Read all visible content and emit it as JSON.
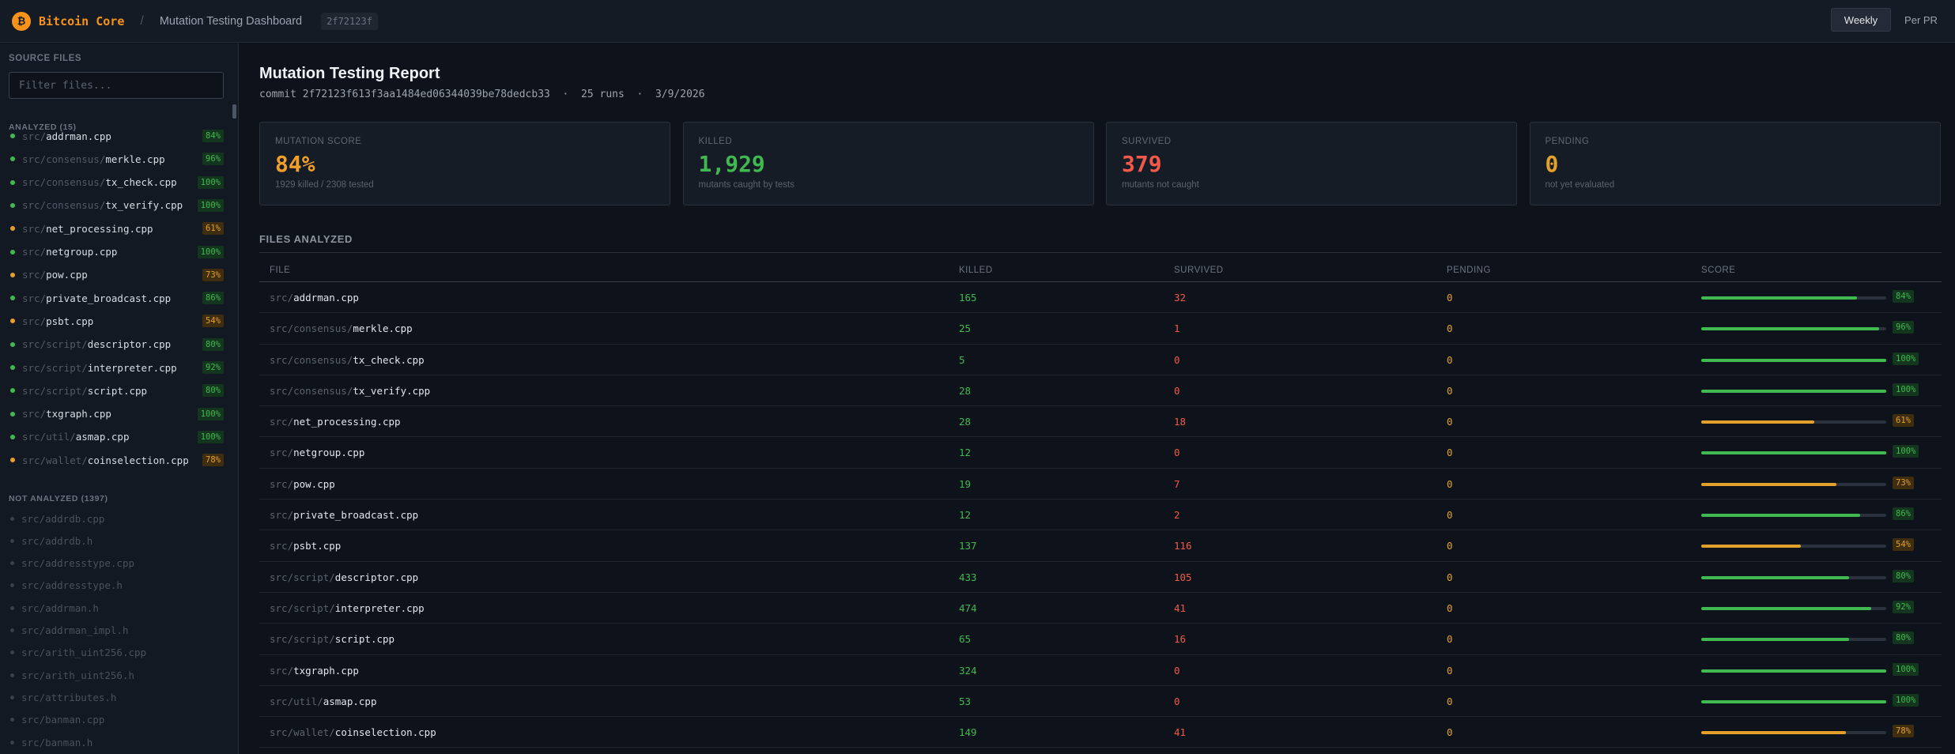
{
  "header": {
    "logo_glyph": "₿",
    "brand": "Bitcoin Core",
    "separator": "/",
    "title": "Mutation Testing Dashboard",
    "commit_short": "2f72123f",
    "toggle": {
      "weekly": "Weekly",
      "per_pr": "Per PR",
      "selected": "Weekly"
    }
  },
  "sidebar": {
    "heading": "SOURCE FILES",
    "filter_placeholder": "Filter files...",
    "analyzed_heading": "ANALYZED (15)",
    "analyzed": [
      {
        "dir": "src/",
        "name": "addrman.cpp",
        "pct": "84%",
        "status": "green"
      },
      {
        "dir": "src/consensus/",
        "name": "merkle.cpp",
        "pct": "96%",
        "status": "green"
      },
      {
        "dir": "src/consensus/",
        "name": "tx_check.cpp",
        "pct": "100%",
        "status": "green"
      },
      {
        "dir": "src/consensus/",
        "name": "tx_verify.cpp",
        "pct": "100%",
        "status": "green"
      },
      {
        "dir": "src/",
        "name": "net_processing.cpp",
        "pct": "61%",
        "status": "orange"
      },
      {
        "dir": "src/",
        "name": "netgroup.cpp",
        "pct": "100%",
        "status": "green"
      },
      {
        "dir": "src/",
        "name": "pow.cpp",
        "pct": "73%",
        "status": "orange"
      },
      {
        "dir": "src/",
        "name": "private_broadcast.cpp",
        "pct": "86%",
        "status": "green"
      },
      {
        "dir": "src/",
        "name": "psbt.cpp",
        "pct": "54%",
        "status": "orange"
      },
      {
        "dir": "src/script/",
        "name": "descriptor.cpp",
        "pct": "80%",
        "status": "green"
      },
      {
        "dir": "src/script/",
        "name": "interpreter.cpp",
        "pct": "92%",
        "status": "green"
      },
      {
        "dir": "src/script/",
        "name": "script.cpp",
        "pct": "80%",
        "status": "green"
      },
      {
        "dir": "src/",
        "name": "txgraph.cpp",
        "pct": "100%",
        "status": "green"
      },
      {
        "dir": "src/util/",
        "name": "asmap.cpp",
        "pct": "100%",
        "status": "green"
      },
      {
        "dir": "src/wallet/",
        "name": "coinselection.cpp",
        "pct": "78%",
        "status": "orange"
      }
    ],
    "not_analyzed_heading": "NOT ANALYZED (1397)",
    "not_analyzed": [
      {
        "dir": "src/",
        "name": "addrdb.cpp"
      },
      {
        "dir": "src/",
        "name": "addrdb.h"
      },
      {
        "dir": "src/",
        "name": "addresstype.cpp"
      },
      {
        "dir": "src/",
        "name": "addresstype.h"
      },
      {
        "dir": "src/",
        "name": "addrman.h"
      },
      {
        "dir": "src/",
        "name": "addrman_impl.h"
      },
      {
        "dir": "src/",
        "name": "arith_uint256.cpp"
      },
      {
        "dir": "src/",
        "name": "arith_uint256.h"
      },
      {
        "dir": "src/",
        "name": "attributes.h"
      },
      {
        "dir": "src/",
        "name": "banman.cpp"
      },
      {
        "dir": "src/",
        "name": "banman.h"
      }
    ]
  },
  "report": {
    "title": "Mutation Testing Report",
    "commit_label": "commit",
    "commit_hash": "2f72123f613f3aa1484ed06344039be78dedcb33",
    "runs": "25 runs",
    "date": "3/9/2026",
    "dot": "·"
  },
  "cards": [
    {
      "label": "MUTATION SCORE",
      "value": "84%",
      "sub": "1929 killed / 2308 tested",
      "color": "#f0a02a"
    },
    {
      "label": "KILLED",
      "value": "1,929",
      "sub": "mutants caught by tests",
      "color": "#3fb950"
    },
    {
      "label": "SURVIVED",
      "value": "379",
      "sub": "mutants not caught",
      "color": "#f15a4a"
    },
    {
      "label": "PENDING",
      "value": "0",
      "sub": "not yet evaluated",
      "color": "#e3a129"
    }
  ],
  "table": {
    "heading": "FILES ANALYZED",
    "columns": [
      "FILE",
      "KILLED",
      "SURVIVED",
      "PENDING",
      "SCORE"
    ],
    "rows": [
      {
        "dir": "src/",
        "name": "addrman.cpp",
        "killed": "165",
        "survived": "32",
        "pending": "0",
        "score": "84%",
        "score_value": 84,
        "status": "green"
      },
      {
        "dir": "src/consensus/",
        "name": "merkle.cpp",
        "killed": "25",
        "survived": "1",
        "pending": "0",
        "score": "96%",
        "score_value": 96,
        "status": "green"
      },
      {
        "dir": "src/consensus/",
        "name": "tx_check.cpp",
        "killed": "5",
        "survived": "0",
        "pending": "0",
        "score": "100%",
        "score_value": 100,
        "status": "green"
      },
      {
        "dir": "src/consensus/",
        "name": "tx_verify.cpp",
        "killed": "28",
        "survived": "0",
        "pending": "0",
        "score": "100%",
        "score_value": 100,
        "status": "green"
      },
      {
        "dir": "src/",
        "name": "net_processing.cpp",
        "killed": "28",
        "survived": "18",
        "pending": "0",
        "score": "61%",
        "score_value": 61,
        "status": "orange"
      },
      {
        "dir": "src/",
        "name": "netgroup.cpp",
        "killed": "12",
        "survived": "0",
        "pending": "0",
        "score": "100%",
        "score_value": 100,
        "status": "green"
      },
      {
        "dir": "src/",
        "name": "pow.cpp",
        "killed": "19",
        "survived": "7",
        "pending": "0",
        "score": "73%",
        "score_value": 73,
        "status": "orange"
      },
      {
        "dir": "src/",
        "name": "private_broadcast.cpp",
        "killed": "12",
        "survived": "2",
        "pending": "0",
        "score": "86%",
        "score_value": 86,
        "status": "green"
      },
      {
        "dir": "src/",
        "name": "psbt.cpp",
        "killed": "137",
        "survived": "116",
        "pending": "0",
        "score": "54%",
        "score_value": 54,
        "status": "orange"
      },
      {
        "dir": "src/script/",
        "name": "descriptor.cpp",
        "killed": "433",
        "survived": "105",
        "pending": "0",
        "score": "80%",
        "score_value": 80,
        "status": "green"
      },
      {
        "dir": "src/script/",
        "name": "interpreter.cpp",
        "killed": "474",
        "survived": "41",
        "pending": "0",
        "score": "92%",
        "score_value": 92,
        "status": "green"
      },
      {
        "dir": "src/script/",
        "name": "script.cpp",
        "killed": "65",
        "survived": "16",
        "pending": "0",
        "score": "80%",
        "score_value": 80,
        "status": "green"
      },
      {
        "dir": "src/",
        "name": "txgraph.cpp",
        "killed": "324",
        "survived": "0",
        "pending": "0",
        "score": "100%",
        "score_value": 100,
        "status": "green"
      },
      {
        "dir": "src/util/",
        "name": "asmap.cpp",
        "killed": "53",
        "survived": "0",
        "pending": "0",
        "score": "100%",
        "score_value": 100,
        "status": "green"
      },
      {
        "dir": "src/wallet/",
        "name": "coinselection.cpp",
        "killed": "149",
        "survived": "41",
        "pending": "0",
        "score": "78%",
        "score_value": 78,
        "status": "orange"
      }
    ]
  }
}
